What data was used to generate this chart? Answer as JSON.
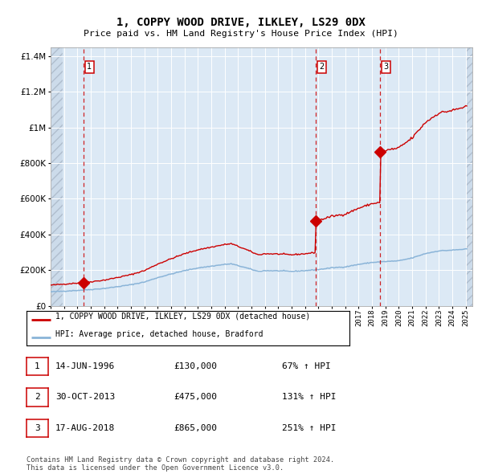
{
  "title": "1, COPPY WOOD DRIVE, ILKLEY, LS29 0DX",
  "subtitle": "Price paid vs. HM Land Registry's House Price Index (HPI)",
  "sale_prices": [
    130000,
    475000,
    865000
  ],
  "legend_row1_label": "1, COPPY WOOD DRIVE, ILKLEY, LS29 0DX (detached house)",
  "legend_row2_label": "HPI: Average price, detached house, Bradford",
  "table_rows": [
    [
      "1",
      "14-JUN-1996",
      "£130,000",
      "67% ↑ HPI"
    ],
    [
      "2",
      "30-OCT-2013",
      "£475,000",
      "131% ↑ HPI"
    ],
    [
      "3",
      "17-AUG-2018",
      "£865,000",
      "251% ↑ HPI"
    ]
  ],
  "footer": "Contains HM Land Registry data © Crown copyright and database right 2024.\nThis data is licensed under the Open Government Licence v3.0.",
  "property_color": "#cc0000",
  "hpi_color": "#8ab4d8",
  "sale_marker_color": "#cc0000",
  "dashed_line_color": "#cc0000",
  "background_color": "#dce9f5",
  "grid_color": "#ffffff",
  "ylim": [
    0,
    1450000
  ],
  "yticks": [
    0,
    200000,
    400000,
    600000,
    800000,
    1000000,
    1200000,
    1400000
  ],
  "sale_times": [
    1996.458,
    2013.792,
    2018.625
  ],
  "hpi_control_years": [
    1994.0,
    1995.0,
    1996.0,
    1997.0,
    1998.0,
    1999.0,
    2000.0,
    2001.0,
    2002.0,
    2003.0,
    2004.0,
    2005.0,
    2006.0,
    2007.0,
    2007.5,
    2008.5,
    2009.5,
    2010.0,
    2011.0,
    2012.0,
    2013.0,
    2013.5,
    2014.0,
    2015.0,
    2016.0,
    2017.0,
    2018.0,
    2019.0,
    2020.0,
    2021.0,
    2022.0,
    2023.0,
    2024.0,
    2025.0
  ],
  "hpi_control_vals": [
    78000,
    82000,
    86000,
    91000,
    97000,
    107000,
    118000,
    133000,
    158000,
    178000,
    197000,
    212000,
    222000,
    232000,
    235000,
    215000,
    193000,
    197000,
    196000,
    193000,
    197000,
    200000,
    203000,
    213000,
    218000,
    232000,
    243000,
    248000,
    252000,
    268000,
    293000,
    308000,
    312000,
    318000
  ]
}
